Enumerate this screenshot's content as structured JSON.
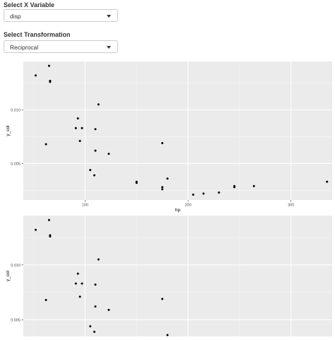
{
  "controls": {
    "x_variable": {
      "label": "Select X Variable",
      "value": "disp"
    },
    "transformation": {
      "label": "Select Transformation",
      "value": "Reciprocal"
    }
  },
  "colors": {
    "panel": "#ebebeb",
    "grid_major": "#ffffff",
    "grid_minor": "#f5f5f5",
    "point": "#000000"
  },
  "icons": {
    "dropdown": "chevron-down-icon"
  },
  "plots": [
    {
      "chart_data": {
        "type": "scatter",
        "xlabel": "hp",
        "ylabel": "y_col",
        "x_ticks": [
          "100",
          "200",
          "300"
        ],
        "y_ticks": [
          "0.005",
          "0.010"
        ],
        "xlim": [
          40,
          340
        ],
        "ylim": [
          0.0016,
          0.0145
        ],
        "grid": true,
        "x": [
          52,
          62,
          65,
          66,
          66,
          91,
          93,
          95,
          97,
          105,
          109,
          110,
          110,
          113,
          123,
          150,
          150,
          175,
          175,
          175,
          180,
          205,
          215,
          230,
          245,
          245,
          264,
          335
        ],
        "y": [
          0.0132,
          0.0068,
          0.0141,
          0.0127,
          0.0126,
          0.0083,
          0.0092,
          0.0071,
          0.0083,
          0.0044,
          0.0039,
          0.0082,
          0.0062,
          0.0105,
          0.0059,
          0.0033,
          0.0032,
          0.0069,
          0.0028,
          0.0026,
          0.0036,
          0.0021,
          0.0022,
          0.0023,
          0.0028,
          0.0029,
          0.0029,
          0.0033
        ]
      }
    },
    {
      "chart_data": {
        "type": "scatter",
        "xlabel": "",
        "ylabel": "y_col",
        "x_ticks": [],
        "y_ticks": [
          "0.005",
          "0.010"
        ],
        "xlim": [
          40,
          340
        ],
        "ylim": [
          0.0016,
          0.0145
        ],
        "grid": true,
        "x": [
          52,
          62,
          65,
          66,
          66,
          91,
          93,
          95,
          97,
          105,
          109,
          110,
          110,
          113,
          123,
          175,
          180
        ],
        "y": [
          0.0132,
          0.0068,
          0.0141,
          0.0127,
          0.0126,
          0.0083,
          0.0092,
          0.0071,
          0.0083,
          0.0044,
          0.0039,
          0.0082,
          0.0062,
          0.0105,
          0.0059,
          0.0069,
          0.0036
        ]
      }
    }
  ]
}
